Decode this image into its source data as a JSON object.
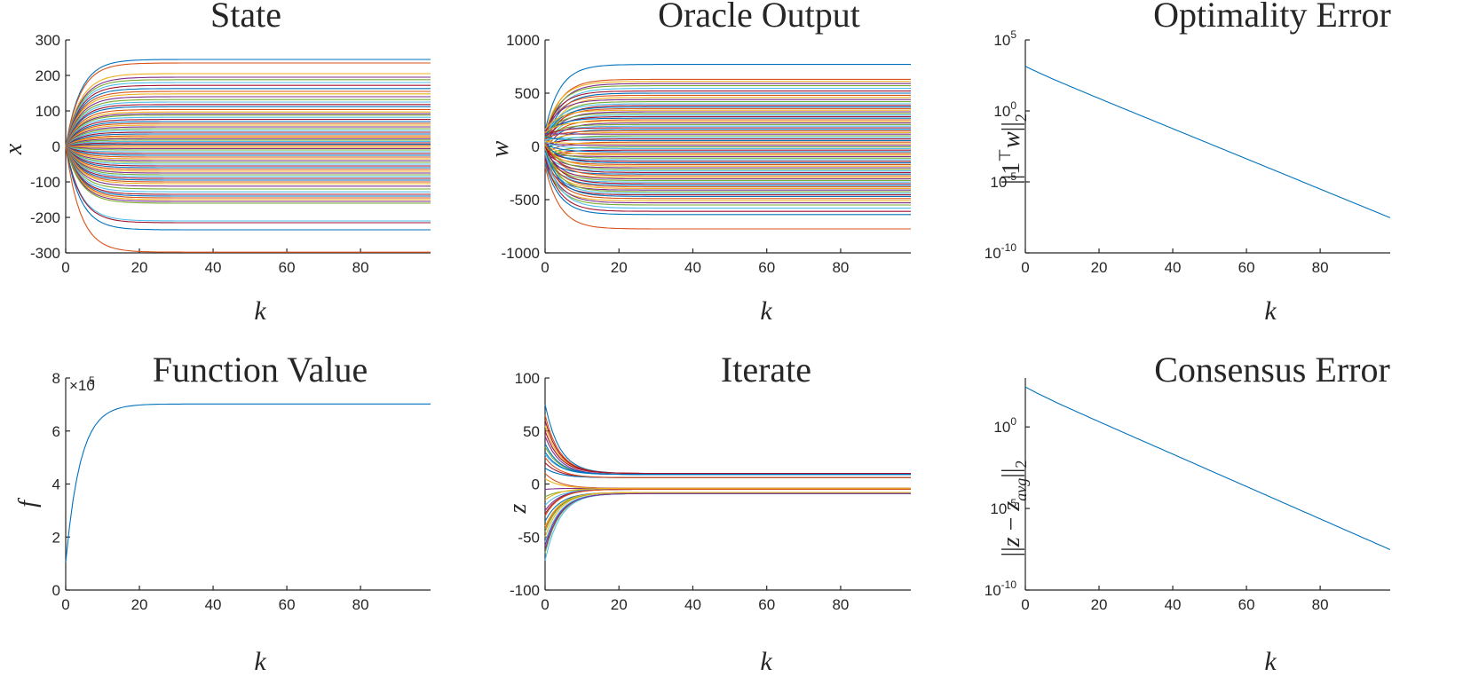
{
  "chart_data": [
    {
      "id": "state",
      "type": "line",
      "title": "State",
      "xlabel": "k",
      "ylabel": "x",
      "xlim": [
        0,
        99
      ],
      "ylim": [
        -300,
        300
      ],
      "yscale": "linear",
      "xticks": [
        0,
        20,
        40,
        60,
        80
      ],
      "yticks": [
        -300,
        -200,
        -100,
        0,
        100,
        200,
        300
      ],
      "ytick_labels": [
        "-300",
        "-200",
        "-100",
        "0",
        "100",
        "200",
        "300"
      ],
      "series_model": "x(k) = x_final * (1 - exp(-k/4)), starting at 0",
      "final_values": [
        245,
        235,
        205,
        195,
        188,
        180,
        172,
        163,
        155,
        148,
        140,
        132,
        125,
        118,
        112,
        104,
        97,
        92,
        88,
        82,
        76,
        70,
        65,
        60,
        55,
        50,
        45,
        40,
        35,
        30,
        26,
        22,
        18,
        14,
        10,
        6,
        3,
        -2,
        -6,
        -10,
        -15,
        -20,
        -25,
        -30,
        -35,
        -40,
        -45,
        -50,
        -55,
        -60,
        -65,
        -70,
        -75,
        -80,
        -85,
        -90,
        -95,
        -100,
        -105,
        -112,
        -120,
        -128,
        -135,
        -140,
        -145,
        -150,
        -155,
        -160,
        -210,
        -215,
        -235,
        -298
      ],
      "grid": false,
      "legend": "none"
    },
    {
      "id": "oracle",
      "type": "line",
      "title": "Oracle Output",
      "xlabel": "k",
      "ylabel": "w",
      "xlim": [
        0,
        99
      ],
      "ylim": [
        -1000,
        1000
      ],
      "yscale": "linear",
      "xticks": [
        0,
        20,
        40,
        60,
        80
      ],
      "yticks": [
        -1000,
        -500,
        0,
        500,
        1000
      ],
      "ytick_labels": [
        "-1000",
        "-500",
        "0",
        "500",
        "1000"
      ],
      "series_model": "w(k) = w_final + (w0 - w_final) * exp(-k/4)",
      "final_values": [
        770,
        630,
        610,
        590,
        570,
        545,
        520,
        500,
        480,
        460,
        440,
        420,
        400,
        385,
        370,
        355,
        340,
        325,
        310,
        295,
        280,
        265,
        250,
        235,
        220,
        205,
        190,
        175,
        160,
        145,
        130,
        115,
        100,
        85,
        70,
        55,
        40,
        25,
        10,
        -5,
        -20,
        -35,
        -50,
        -65,
        -80,
        -95,
        -110,
        -125,
        -140,
        -155,
        -170,
        -185,
        -200,
        -215,
        -230,
        -245,
        -260,
        -275,
        -290,
        -305,
        -320,
        -335,
        -350,
        -365,
        -380,
        -395,
        -410,
        -425,
        -440,
        -455,
        -470,
        -490,
        -510,
        -530,
        -550,
        -580,
        -610,
        -640,
        -775
      ],
      "initial_values": [
        150,
        90,
        130,
        60,
        110,
        40,
        120,
        20,
        100,
        -10,
        140,
        30,
        80,
        -30,
        70,
        50,
        160,
        10,
        90,
        -20,
        60,
        110,
        0,
        130,
        -40,
        80,
        40,
        100,
        -60,
        70,
        20,
        120,
        -50,
        60,
        10,
        90,
        -70,
        50,
        30,
        -90,
        40,
        -100,
        20,
        -80,
        10,
        -60,
        0,
        -40,
        -20,
        30,
        -30,
        10,
        -50,
        20,
        -70,
        0,
        -90,
        40,
        -110,
        -20,
        -60,
        -130,
        0,
        -80,
        -40,
        -100,
        -150,
        -20,
        -60,
        -120,
        -40,
        -80,
        -170,
        -100,
        -140,
        -60,
        -120,
        -160,
        -190
      ],
      "grid": false,
      "legend": "none"
    },
    {
      "id": "optimality",
      "type": "line",
      "title": "Optimality Error",
      "xlabel": "k",
      "ylabel": "||1ᵀw||₂",
      "xlim": [
        0,
        99
      ],
      "ylim": [
        1e-10,
        100000.0
      ],
      "yscale": "log",
      "xticks": [
        0,
        20,
        40,
        60,
        80
      ],
      "yticks_exp": [
        -10,
        -5,
        0,
        5
      ],
      "series": [
        {
          "x_start": 0,
          "y_start": 1000,
          "x_end": 99,
          "y_end": 3e-08
        }
      ],
      "grid": false,
      "legend": "none"
    },
    {
      "id": "function",
      "type": "line",
      "title": "Function Value",
      "xlabel": "k",
      "ylabel": "f",
      "xlim": [
        0,
        99
      ],
      "ylim": [
        0,
        8
      ],
      "yscale": "linear",
      "multiplier": "×10",
      "multiplier_exp": "5",
      "xticks": [
        0,
        20,
        40,
        60,
        80
      ],
      "yticks": [
        0,
        2,
        4,
        6,
        8
      ],
      "series": [
        {
          "y0": 1.05,
          "y_final": 7.02,
          "tau": 4
        }
      ],
      "grid": false,
      "legend": "none"
    },
    {
      "id": "iterate",
      "type": "line",
      "title": "Iterate",
      "xlabel": "k",
      "ylabel": "z",
      "xlim": [
        0,
        99
      ],
      "ylim": [
        -100,
        100
      ],
      "yscale": "linear",
      "xticks": [
        0,
        20,
        40,
        60,
        80
      ],
      "yticks": [
        -100,
        -50,
        0,
        50,
        100
      ],
      "series_model": "z(k) = z_final + (z0 - z_final) * exp(-k/4)",
      "final_values": [
        10,
        10,
        10,
        9,
        9,
        9,
        6,
        6,
        -4,
        -4,
        -4,
        -5,
        -5,
        -5,
        -8,
        -8,
        -8,
        -9,
        -9,
        -9,
        10,
        9,
        6,
        -4,
        -5,
        -8,
        -9,
        10,
        9,
        -5,
        -8,
        -9
      ],
      "initial_values": [
        75,
        65,
        55,
        45,
        35,
        28,
        20,
        15,
        10,
        5,
        -5,
        -12,
        -20,
        -28,
        -35,
        -42,
        -50,
        -58,
        -65,
        -72,
        60,
        38,
        25,
        -15,
        -25,
        -45,
        -55,
        50,
        30,
        -30,
        -40,
        -62
      ],
      "grid": false,
      "legend": "none"
    },
    {
      "id": "consensus",
      "type": "line",
      "title": "Consensus Error",
      "xlabel": "k",
      "ylabel": "||z − z_avg||₂",
      "xlim": [
        0,
        99
      ],
      "ylim": [
        1e-10,
        1000.0
      ],
      "yscale": "log",
      "xticks": [
        0,
        20,
        40,
        60,
        80
      ],
      "yticks_exp": [
        -10,
        -5,
        0
      ],
      "series": [
        {
          "x_start": 0,
          "y_start": 200,
          "x_end": 99,
          "y_end": 3e-08
        }
      ],
      "grid": false,
      "legend": "none"
    }
  ],
  "colors": [
    "#0072BD",
    "#D95319",
    "#EDB120",
    "#7E2F8E",
    "#77AC30",
    "#4DBEEE",
    "#A2142F"
  ],
  "single_series_color": "#0072BD"
}
